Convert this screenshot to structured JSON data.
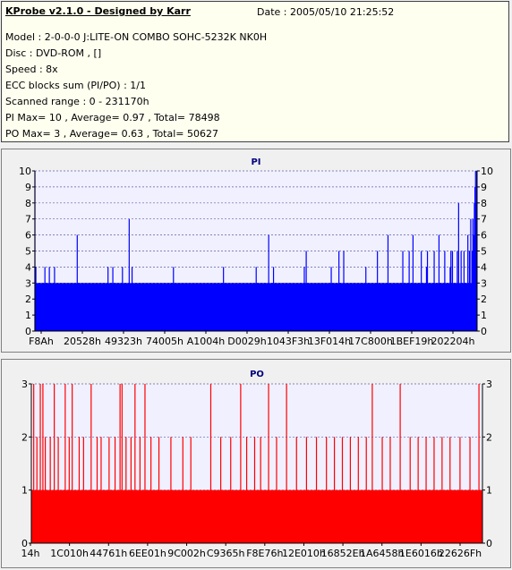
{
  "header": {
    "title": "KProbe v2.1.0 - Designed by Karr",
    "date": "Date : 2005/05/10 21:25:52",
    "lines": [
      "Model : 2-0-0-0 J:LITE-ON COMBO SOHC-5232K NK0H",
      "Disc : DVD-ROM ,  []",
      "Speed : 8x",
      "ECC blocks sum (PI/PO) : 1/1",
      "Scanned range : 0 - 231170h",
      "PI Max= 10 , Average= 0.97 , Total= 78498",
      "PO Max= 3 , Average= 0.63 , Total= 50627"
    ]
  },
  "colors": {
    "pi": "#0000ff",
    "po": "#ff0000",
    "plot_bg": "#f0f0ff",
    "grid": "#6060a0"
  },
  "chart_data": [
    {
      "type": "bar",
      "title": "PI",
      "ylim": [
        0,
        10
      ],
      "yticks": [
        0,
        1,
        2,
        3,
        4,
        5,
        6,
        7,
        8,
        9,
        10
      ],
      "xtick_labels": [
        "F8Ah",
        "20528h",
        "49323h",
        "74005h",
        "A1004h",
        "D0029h",
        "1043F3h",
        "13F014h",
        "17C800h",
        "1BEF19h",
        "202204h"
      ],
      "x_range": [
        0,
        2298000
      ],
      "baseline_level": 3,
      "grid": true,
      "spikes": [
        {
          "x": 0,
          "y": 10
        },
        {
          "x": 5000,
          "y": 4
        },
        {
          "x": 52000,
          "y": 4
        },
        {
          "x": 75000,
          "y": 4
        },
        {
          "x": 102000,
          "y": 4
        },
        {
          "x": 220000,
          "y": 6
        },
        {
          "x": 380000,
          "y": 4
        },
        {
          "x": 405000,
          "y": 4
        },
        {
          "x": 455000,
          "y": 4
        },
        {
          "x": 490000,
          "y": 7
        },
        {
          "x": 505000,
          "y": 4
        },
        {
          "x": 720000,
          "y": 4
        },
        {
          "x": 980000,
          "y": 4
        },
        {
          "x": 1150000,
          "y": 4
        },
        {
          "x": 1215000,
          "y": 6
        },
        {
          "x": 1240000,
          "y": 4
        },
        {
          "x": 1400000,
          "y": 4
        },
        {
          "x": 1410000,
          "y": 5
        },
        {
          "x": 1540000,
          "y": 4
        },
        {
          "x": 1580000,
          "y": 5
        },
        {
          "x": 1605000,
          "y": 5
        },
        {
          "x": 1720000,
          "y": 4
        },
        {
          "x": 1780000,
          "y": 5
        },
        {
          "x": 1835000,
          "y": 6
        },
        {
          "x": 1912000,
          "y": 5
        },
        {
          "x": 1945000,
          "y": 5
        },
        {
          "x": 1965000,
          "y": 6
        },
        {
          "x": 2008000,
          "y": 5
        },
        {
          "x": 2035000,
          "y": 4
        },
        {
          "x": 2040000,
          "y": 5
        },
        {
          "x": 2075000,
          "y": 5
        },
        {
          "x": 2100000,
          "y": 6
        },
        {
          "x": 2130000,
          "y": 5
        },
        {
          "x": 2158000,
          "y": 4
        },
        {
          "x": 2162000,
          "y": 5
        },
        {
          "x": 2170000,
          "y": 5
        },
        {
          "x": 2195000,
          "y": 5
        },
        {
          "x": 2202000,
          "y": 8
        },
        {
          "x": 2215000,
          "y": 5
        },
        {
          "x": 2230000,
          "y": 5
        },
        {
          "x": 2250000,
          "y": 6
        },
        {
          "x": 2258000,
          "y": 5
        },
        {
          "x": 2265000,
          "y": 7
        },
        {
          "x": 2273000,
          "y": 5
        },
        {
          "x": 2276000,
          "y": 7
        },
        {
          "x": 2280000,
          "y": 6
        },
        {
          "x": 2284000,
          "y": 8
        },
        {
          "x": 2287000,
          "y": 9
        },
        {
          "x": 2290000,
          "y": 10
        },
        {
          "x": 2293000,
          "y": 8
        },
        {
          "x": 2296000,
          "y": 10
        }
      ]
    },
    {
      "type": "bar",
      "title": "PO",
      "ylim": [
        0,
        3
      ],
      "yticks": [
        0,
        1,
        2,
        3
      ],
      "xtick_labels": [
        "14h",
        "1C010h",
        "44761h",
        "6EE01h",
        "9C002h",
        "C9365h",
        "F8E76h",
        "12E010h",
        "16852Eh",
        "1A6458h",
        "1E6016h",
        "22626Fh"
      ],
      "x_range": [
        0,
        2262600
      ],
      "baseline_level": 1,
      "grid": true,
      "spikes": [
        {
          "x": 12000,
          "y": 3
        },
        {
          "x": 28000,
          "y": 2
        },
        {
          "x": 45000,
          "y": 3
        },
        {
          "x": 58000,
          "y": 3
        },
        {
          "x": 70000,
          "y": 2
        },
        {
          "x": 95000,
          "y": 2
        },
        {
          "x": 115000,
          "y": 3
        },
        {
          "x": 135000,
          "y": 2
        },
        {
          "x": 170000,
          "y": 3
        },
        {
          "x": 190000,
          "y": 2
        },
        {
          "x": 205000,
          "y": 3
        },
        {
          "x": 240000,
          "y": 2
        },
        {
          "x": 262000,
          "y": 2
        },
        {
          "x": 300000,
          "y": 3
        },
        {
          "x": 330000,
          "y": 2
        },
        {
          "x": 350000,
          "y": 2
        },
        {
          "x": 390000,
          "y": 2
        },
        {
          "x": 420000,
          "y": 2
        },
        {
          "x": 445000,
          "y": 3
        },
        {
          "x": 455000,
          "y": 3
        },
        {
          "x": 475000,
          "y": 2
        },
        {
          "x": 500000,
          "y": 2
        },
        {
          "x": 520000,
          "y": 3
        },
        {
          "x": 545000,
          "y": 2
        },
        {
          "x": 570000,
          "y": 3
        },
        {
          "x": 600000,
          "y": 2
        },
        {
          "x": 640000,
          "y": 2
        },
        {
          "x": 700000,
          "y": 2
        },
        {
          "x": 760000,
          "y": 2
        },
        {
          "x": 800000,
          "y": 2
        },
        {
          "x": 900000,
          "y": 3
        },
        {
          "x": 950000,
          "y": 2
        },
        {
          "x": 1000000,
          "y": 2
        },
        {
          "x": 1050000,
          "y": 3
        },
        {
          "x": 1080000,
          "y": 2
        },
        {
          "x": 1120000,
          "y": 2
        },
        {
          "x": 1150000,
          "y": 2
        },
        {
          "x": 1190000,
          "y": 3
        },
        {
          "x": 1230000,
          "y": 2
        },
        {
          "x": 1280000,
          "y": 3
        },
        {
          "x": 1330000,
          "y": 2
        },
        {
          "x": 1380000,
          "y": 2
        },
        {
          "x": 1430000,
          "y": 2
        },
        {
          "x": 1480000,
          "y": 2
        },
        {
          "x": 1520000,
          "y": 2
        },
        {
          "x": 1560000,
          "y": 2
        },
        {
          "x": 1600000,
          "y": 2
        },
        {
          "x": 1640000,
          "y": 2
        },
        {
          "x": 1680000,
          "y": 2
        },
        {
          "x": 1710000,
          "y": 3
        },
        {
          "x": 1760000,
          "y": 2
        },
        {
          "x": 1800000,
          "y": 2
        },
        {
          "x": 1850000,
          "y": 3
        },
        {
          "x": 1900000,
          "y": 2
        },
        {
          "x": 1940000,
          "y": 2
        },
        {
          "x": 1980000,
          "y": 2
        },
        {
          "x": 2020000,
          "y": 2
        },
        {
          "x": 2060000,
          "y": 2
        },
        {
          "x": 2100000,
          "y": 2
        },
        {
          "x": 2150000,
          "y": 2
        },
        {
          "x": 2200000,
          "y": 2
        },
        {
          "x": 2245000,
          "y": 3
        }
      ]
    }
  ]
}
